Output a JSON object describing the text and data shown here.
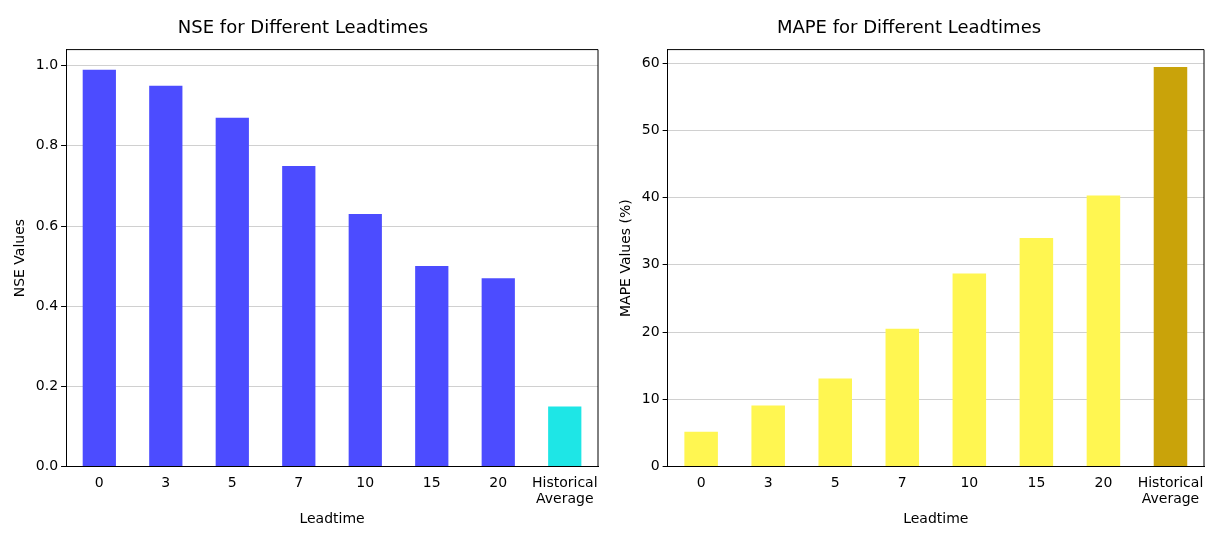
{
  "chart_data": [
    {
      "type": "bar",
      "title": "NSE for Different Leadtimes",
      "xlabel": "Leadtime",
      "ylabel": "NSE Values",
      "categories": [
        "0",
        "3",
        "5",
        "7",
        "10",
        "15",
        "20",
        "Historical Average"
      ],
      "values": [
        0.99,
        0.95,
        0.87,
        0.75,
        0.63,
        0.5,
        0.47,
        0.15
      ],
      "colors": [
        "#4c4cff",
        "#4c4cff",
        "#4c4cff",
        "#4c4cff",
        "#4c4cff",
        "#4c4cff",
        "#4c4cff",
        "#1ee6e6"
      ],
      "ylim": [
        0,
        1.04
      ],
      "yticks": [
        {
          "value": 0,
          "label": "0.0"
        },
        0.2,
        0.4,
        0.6,
        0.8,
        {
          "value": 1,
          "label": "1.0"
        }
      ],
      "grid": "y"
    },
    {
      "type": "bar",
      "title": "MAPE for Different Leadtimes",
      "xlabel": "Leadtime",
      "ylabel": "MAPE Values (%)",
      "categories": [
        "0",
        "3",
        "5",
        "7",
        "10",
        "15",
        "20",
        "Historical Average"
      ],
      "values": [
        5.2,
        9.1,
        13.1,
        20.5,
        28.7,
        34.0,
        40.3,
        59.4
      ],
      "colors": [
        "#fff651",
        "#fff651",
        "#fff651",
        "#fff651",
        "#fff651",
        "#fff651",
        "#fff651",
        "#c9a30a"
      ],
      "ylim": [
        0,
        62
      ],
      "yticks": [
        0,
        10,
        20,
        30,
        40,
        50,
        60
      ],
      "grid": "y"
    }
  ]
}
